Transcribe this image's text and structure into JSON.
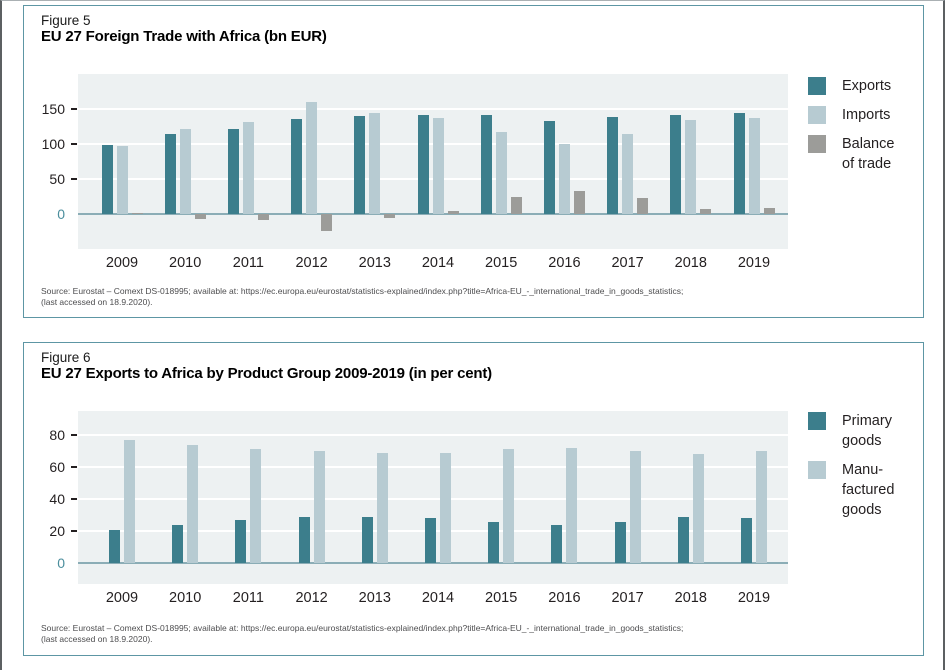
{
  "colors": {
    "teal": "#3C7E8C",
    "light_blue": "#B7CBD2",
    "gray": "#9C9C99",
    "plot_bg": "#EDF1F2",
    "baseline": "#8BADB6",
    "zero_label": "#4B8E9D",
    "box_border": "#5D96A4",
    "gridline": "#FFFFFF"
  },
  "figures": [
    {
      "label": "Figure 5",
      "title": "EU 27 Foreign Trade with Africa (bn EUR)",
      "source_line1": "Source: Eurostat – Comext DS-018995; available at: https://ec.europa.eu/eurostat/statistics-explained/index.php?title=Africa-EU_-_international_trade_in_goods_statistics;",
      "source_line2": "(last accessed on 18.9.2020)."
    },
    {
      "label": "Figure 6",
      "title": "EU 27 Exports to Africa by Product Group 2009-2019 (in per cent)",
      "source_line1": "Source: Eurostat – Comext DS-018995; available at: https://ec.europa.eu/eurostat/statistics-explained/index.php?title=Africa-EU_-_international_trade_in_goods_statistics;",
      "source_line2": "(last accessed on 18.9.2020)."
    }
  ],
  "chart_data": [
    {
      "type": "bar",
      "title": "EU 27 Foreign Trade with Africa (bn EUR)",
      "categories": [
        "2009",
        "2010",
        "2011",
        "2012",
        "2013",
        "2014",
        "2015",
        "2016",
        "2017",
        "2018",
        "2019"
      ],
      "series": [
        {
          "name": "Exports",
          "color": "#3C7E8C",
          "values": [
            99,
            114,
            122,
            136,
            140,
            142,
            142,
            133,
            138,
            141,
            145
          ]
        },
        {
          "name": "Imports",
          "color": "#B7CBD2",
          "values": [
            97,
            121,
            131,
            160,
            145,
            137,
            117,
            100,
            115,
            134,
            137
          ]
        },
        {
          "name": "Balance\nof trade",
          "color": "#9C9C99",
          "values": [
            2,
            -7,
            -9,
            -24,
            -5,
            5,
            25,
            33,
            23,
            7,
            8
          ]
        }
      ],
      "xlabel": "",
      "ylabel": "",
      "yticks": [
        0,
        50,
        100,
        150
      ],
      "ylim": [
        -50,
        200
      ],
      "grid": true,
      "legend_position": "right"
    },
    {
      "type": "bar",
      "title": "EU 27 Exports to Africa by Product Group 2009-2019 (in per cent)",
      "categories": [
        "2009",
        "2010",
        "2011",
        "2012",
        "2013",
        "2014",
        "2015",
        "2016",
        "2017",
        "2018",
        "2019"
      ],
      "series": [
        {
          "name": "Primary\ngoods",
          "color": "#3C7E8C",
          "values": [
            21,
            24,
            27,
            29,
            29,
            28,
            26,
            24,
            26,
            29,
            28
          ]
        },
        {
          "name": "Manu-\nfactured\ngoods",
          "color": "#B7CBD2",
          "values": [
            77,
            74,
            71,
            70,
            69,
            69,
            71,
            72,
            70,
            68,
            70
          ]
        }
      ],
      "xlabel": "",
      "ylabel": "",
      "yticks": [
        0,
        20,
        40,
        60,
        80
      ],
      "ylim": [
        -13,
        95
      ],
      "grid": true,
      "legend_position": "right"
    }
  ]
}
